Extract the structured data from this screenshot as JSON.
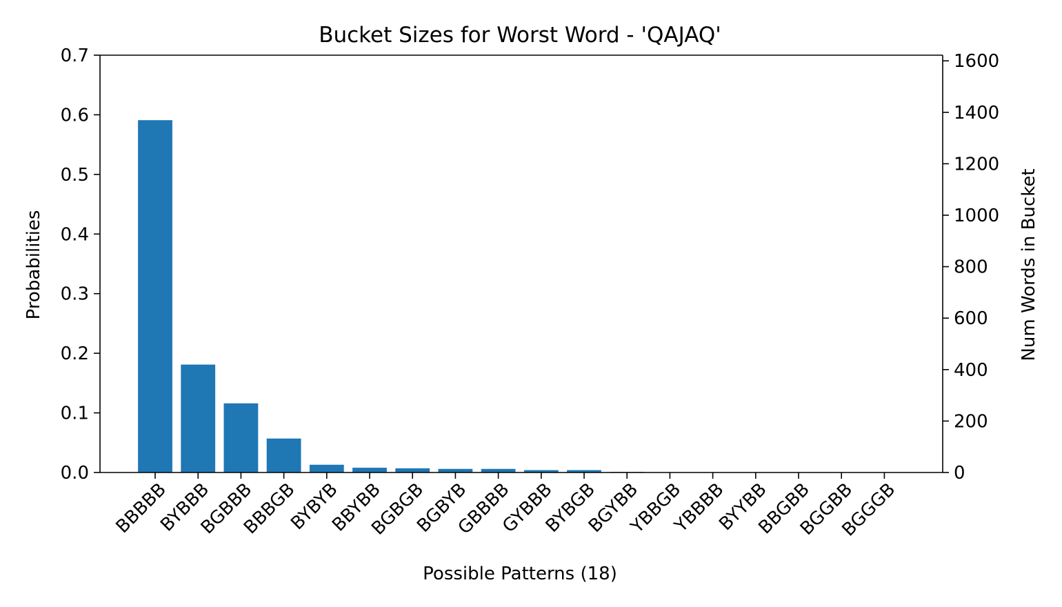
{
  "chart_data": {
    "type": "bar",
    "title": "Bucket Sizes for Worst Word - 'QAJAQ'",
    "xlabel": "Possible Patterns (18)",
    "ylabel": "Probabilities",
    "ylabel_right": "Num Words in Bucket",
    "categories": [
      "BBBBB",
      "BYBBB",
      "BGBBB",
      "BBBGB",
      "BYBYB",
      "BBYBB",
      "BGBGB",
      "BGBYB",
      "GBBBB",
      "GYBBB",
      "BYBGB",
      "BGYBB",
      "YBBGB",
      "YBBBB",
      "BYYBB",
      "BBGBB",
      "BGGBB",
      "BGGGB"
    ],
    "values": [
      0.591,
      0.181,
      0.116,
      0.057,
      0.013,
      0.008,
      0.007,
      0.006,
      0.006,
      0.004,
      0.004,
      0.001,
      0.0005,
      0.0005,
      0.0005,
      0.0004,
      0.0004,
      0.0004
    ],
    "ylim": [
      0,
      0.7
    ],
    "yticks": [
      "0.0",
      "0.1",
      "0.2",
      "0.3",
      "0.4",
      "0.5",
      "0.6",
      "0.7"
    ],
    "ylim_right": [
      0,
      1622
    ],
    "yticks_right": [
      "0",
      "200",
      "400",
      "600",
      "800",
      "1000",
      "1200",
      "1400",
      "1600"
    ],
    "bar_color": "#1f77b4",
    "grid": false,
    "legend": "none"
  }
}
